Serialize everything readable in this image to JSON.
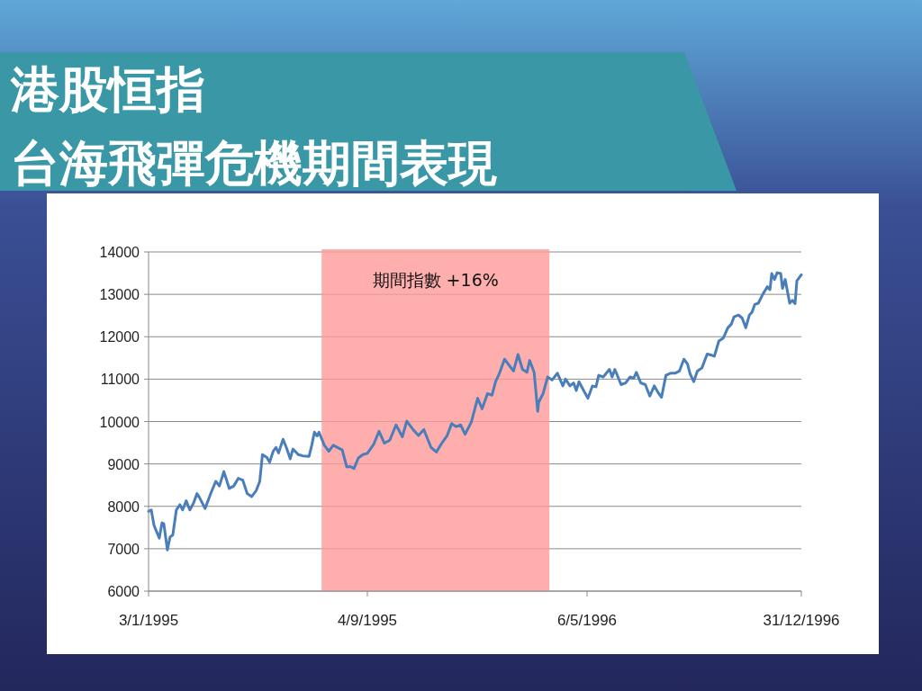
{
  "chart_data": {
    "type": "line",
    "title": "港股恒指",
    "subtitle": "台海飛彈危機期間表現",
    "x": [
      "1995-01-03",
      "1995-01-06",
      "1995-01-09",
      "1995-01-11",
      "1995-01-15",
      "1995-01-18",
      "1995-01-20",
      "1995-01-24",
      "1995-01-27",
      "1995-01-30",
      "1995-02-03",
      "1995-02-07",
      "1995-02-10",
      "1995-02-14",
      "1995-02-18",
      "1995-02-22",
      "1995-02-26",
      "1995-03-01",
      "1995-03-07",
      "1995-03-09",
      "1995-03-14",
      "1995-03-19",
      "1995-03-23",
      "1995-03-28",
      "1995-04-03",
      "1995-04-08",
      "1995-04-13",
      "1995-04-18",
      "1995-04-23",
      "1995-04-28",
      "1995-05-03",
      "1995-05-07",
      "1995-05-10",
      "1995-05-15",
      "1995-05-18",
      "1995-05-22",
      "1995-05-25",
      "1995-05-28",
      "1995-06-02",
      "1995-06-06",
      "1995-06-10",
      "1995-06-13",
      "1995-06-19",
      "1995-06-24",
      "1995-07-01",
      "1995-07-04",
      "1995-07-07",
      "1995-07-10",
      "1995-07-12",
      "1995-07-18",
      "1995-07-23",
      "1995-07-28",
      "1995-08-07",
      "1995-08-12",
      "1995-08-16",
      "1995-08-20",
      "1995-08-25",
      "1995-08-30",
      "1995-09-04",
      "1995-09-11",
      "1995-09-17",
      "1995-09-23",
      "1995-09-29",
      "1995-10-06",
      "1995-10-13",
      "1995-10-18",
      "1995-10-25",
      "1995-10-31",
      "1995-11-06",
      "1995-11-14",
      "1995-11-20",
      "1995-11-26",
      "1995-12-02",
      "1995-12-07",
      "1995-12-12",
      "1995-12-17",
      "1995-12-22",
      "1995-12-29",
      "1996-01-05",
      "1996-01-10",
      "1996-01-16",
      "1996-01-21",
      "1996-01-25",
      "1996-01-29",
      "1996-02-04",
      "1996-02-14",
      "1996-02-19",
      "1996-02-24",
      "1996-02-29",
      "1996-03-03",
      "1996-03-08",
      "1996-03-12",
      "1996-03-13",
      "1996-03-18",
      "1996-03-23",
      "1996-03-28",
      "1996-04-03",
      "1996-04-09",
      "1996-04-12",
      "1996-04-17",
      "1996-04-21",
      "1996-04-24",
      "1996-04-27",
      "1996-05-03",
      "1996-05-07",
      "1996-05-12",
      "1996-05-16",
      "1996-05-19",
      "1996-05-24",
      "1996-05-31",
      "1996-06-03",
      "1996-06-06",
      "1996-06-13",
      "1996-06-18",
      "1996-06-23",
      "1996-06-27",
      "1996-06-30",
      "1996-07-05",
      "1996-07-10",
      "1996-07-15",
      "1996-07-20",
      "1996-07-25",
      "1996-07-28",
      "1996-08-02",
      "1996-08-07",
      "1996-08-12",
      "1996-08-17",
      "1996-08-22",
      "1996-08-26",
      "1996-08-29",
      "1996-09-02",
      "1996-09-06",
      "1996-09-11",
      "1996-09-17",
      "1996-09-21",
      "1996-09-25",
      "1996-09-30",
      "1996-10-05",
      "1996-10-10",
      "1996-10-14",
      "1996-10-17",
      "1996-10-22",
      "1996-10-26",
      "1996-10-30",
      "1996-11-03",
      "1996-11-06",
      "1996-11-09",
      "1996-11-13",
      "1996-11-18",
      "1996-11-23",
      "1996-11-26",
      "1996-11-28",
      "1996-12-01",
      "1996-12-04",
      "1996-12-08",
      "1996-12-10",
      "1996-12-13",
      "1996-12-18",
      "1996-12-21",
      "1996-12-24",
      "1996-12-26",
      "1996-12-31"
    ],
    "series": [
      {
        "color": "#4a7ebb",
        "values": [
          7880,
          7915,
          7560,
          7450,
          7250,
          7610,
          7590,
          6970,
          7280,
          7320,
          7915,
          8040,
          7915,
          8130,
          7915,
          8070,
          8300,
          8200,
          7950,
          8060,
          8340,
          8590,
          8480,
          8820,
          8420,
          8480,
          8660,
          8620,
          8300,
          8230,
          8370,
          8590,
          9220,
          9150,
          9040,
          9300,
          9390,
          9260,
          9580,
          9370,
          9120,
          9350,
          9220,
          9190,
          9180,
          9440,
          9750,
          9660,
          9750,
          9440,
          9300,
          9440,
          9330,
          8930,
          8940,
          8890,
          9140,
          9220,
          9250,
          9460,
          9770,
          9490,
          9560,
          9920,
          9640,
          10010,
          9810,
          9670,
          9810,
          9390,
          9280,
          9490,
          9670,
          9950,
          9880,
          9920,
          9700,
          9990,
          10550,
          10300,
          10660,
          10620,
          10940,
          11120,
          11470,
          11190,
          11580,
          11230,
          11160,
          11440,
          11160,
          10240,
          10450,
          10660,
          11050,
          10980,
          11140,
          10840,
          11000,
          10840,
          10910,
          10730,
          10940,
          10700,
          10550,
          10840,
          10820,
          11090,
          11050,
          11230,
          11050,
          11230,
          10870,
          10910,
          11050,
          11020,
          11160,
          10910,
          10870,
          10600,
          10840,
          10660,
          10570,
          11090,
          11140,
          11140,
          11190,
          11470,
          11360,
          11120,
          10940,
          11190,
          11260,
          11590,
          11570,
          11540,
          11900,
          11970,
          12210,
          12300,
          12470,
          12510,
          12440,
          12210,
          12510,
          12580,
          12760,
          12790,
          13000,
          13180,
          13110,
          13490,
          13350,
          13510,
          13490,
          13140,
          13350,
          12790,
          12860,
          12780,
          13320,
          13460
        ]
      }
    ],
    "xlim": [
      "1995-01-03",
      "1996-12-31"
    ],
    "xticks": [
      {
        "value": "1995-01-03",
        "label": "3/1/1995"
      },
      {
        "value": "1995-09-04",
        "label": "4/9/1995"
      },
      {
        "value": "1996-05-06",
        "label": "6/5/1996"
      },
      {
        "value": "1996-12-31",
        "label": "31/12/1996"
      }
    ],
    "ylim": [
      6000,
      14000
    ],
    "yticks": [
      6000,
      7000,
      8000,
      9000,
      10000,
      11000,
      12000,
      13000,
      14000
    ],
    "grid": "y",
    "bands": [
      {
        "axis": "x",
        "from": "1995-07-15",
        "to": "1996-03-25",
        "label": "期間指數 +16%",
        "color": "#ff9a9a"
      }
    ]
  }
}
